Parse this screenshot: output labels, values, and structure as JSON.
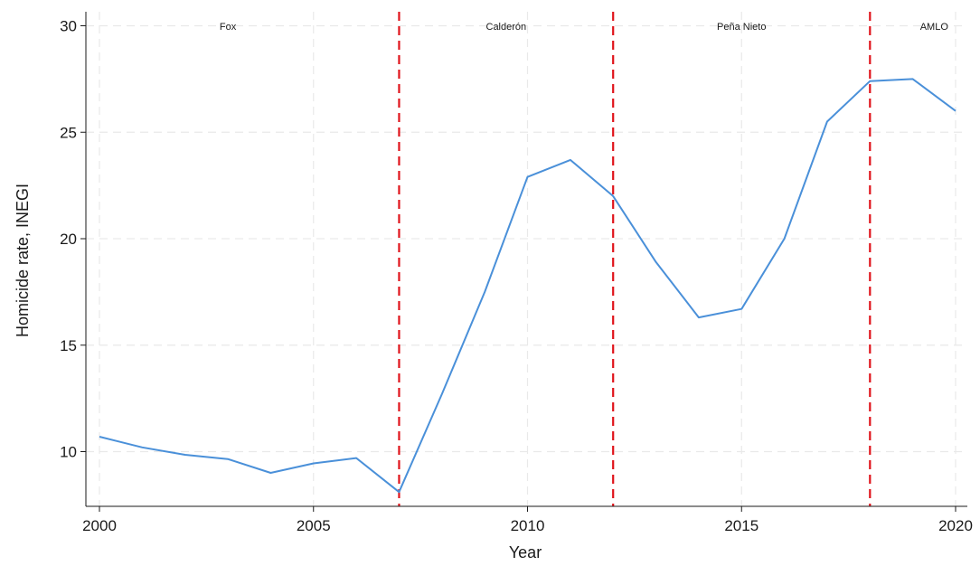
{
  "chart_data": {
    "type": "line",
    "xlabel": "Year",
    "ylabel": "Homicide rate, INEGI",
    "xlim": [
      2000,
      2020
    ],
    "ylim": [
      8,
      30
    ],
    "x_ticks": [
      2000,
      2005,
      2010,
      2015,
      2020
    ],
    "y_ticks": [
      10,
      15,
      20,
      25,
      30
    ],
    "grid": true,
    "series": [
      {
        "color": "#4a90d9",
        "x": [
          2000,
          2001,
          2002,
          2003,
          2004,
          2005,
          2006,
          2007,
          2008,
          2009,
          2010,
          2011,
          2012,
          2013,
          2014,
          2015,
          2016,
          2017,
          2018,
          2019,
          2020
        ],
        "y": [
          10.7,
          10.2,
          9.85,
          9.65,
          9.0,
          9.45,
          9.7,
          8.1,
          12.7,
          17.5,
          22.9,
          23.7,
          22.0,
          18.9,
          16.3,
          16.7,
          20.0,
          25.5,
          27.4,
          27.5,
          26.0
        ]
      }
    ],
    "vertical_lines": {
      "x": [
        2007,
        2012,
        2018
      ],
      "color": "#e0141b",
      "style": "dashed"
    },
    "period_labels": [
      {
        "text": "Fox",
        "x": 2003.0
      },
      {
        "text": "Calderón",
        "x": 2009.5
      },
      {
        "text": "Peña Nieto",
        "x": 2015.0
      },
      {
        "text": "AMLO",
        "x": 2019.5
      }
    ]
  }
}
